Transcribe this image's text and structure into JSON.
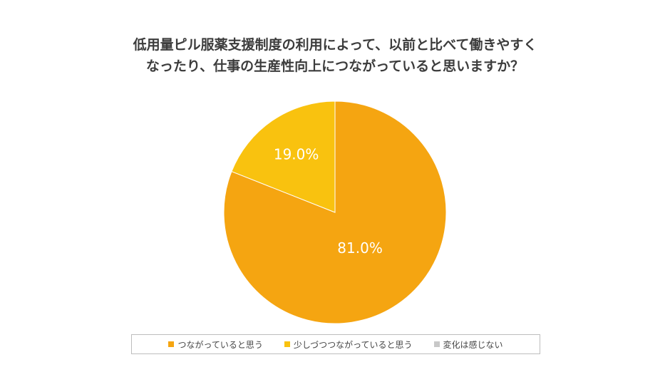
{
  "chart_data": {
    "type": "pie",
    "title_lines": [
      "低用量ピル服薬支援制度の利用によって、以前と比べて働きやすく",
      "なったり、仕事の生産性向上につながっていると思いますか？"
    ],
    "categories": [
      "つながっていると思う",
      "少しづつつながっていると思う",
      "変化は感じない"
    ],
    "values": [
      81.0,
      19.0,
      0
    ],
    "labels": [
      "81.0%",
      "19.0%",
      ""
    ],
    "colors": [
      "#F5A511",
      "#F9C20F",
      "#C8C8C8"
    ],
    "legend_position": "bottom"
  }
}
